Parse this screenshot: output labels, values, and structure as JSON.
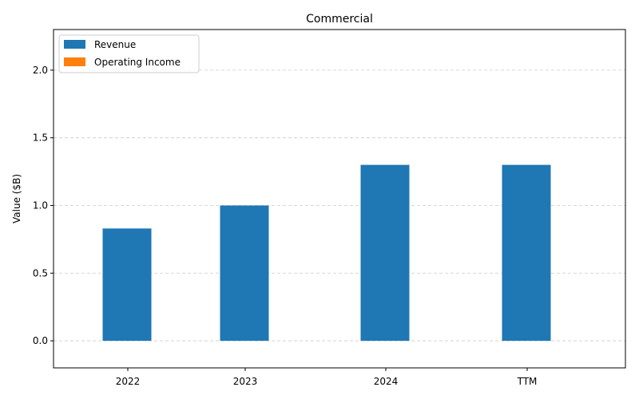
{
  "chart_data": {
    "type": "bar",
    "title": "Commercial",
    "xlabel": "",
    "ylabel": "Value ($B)",
    "categories": [
      "2022",
      "2023",
      "2024",
      "TTM"
    ],
    "series": [
      {
        "name": "Revenue",
        "values": [
          0.83,
          1.0,
          1.3,
          1.3
        ],
        "color": "#1f77b4"
      },
      {
        "name": "Operating Income",
        "values": [
          0,
          0,
          0,
          0
        ],
        "color": "#ff7f0e"
      }
    ],
    "ylim": [
      -0.2,
      2.3
    ],
    "yticks": [
      0.0,
      0.5,
      1.0,
      1.5,
      2.0
    ],
    "ytick_labels": [
      "0.0",
      "0.5",
      "1.0",
      "1.5",
      "2.0"
    ],
    "grid": "y-dashed",
    "legend": "top-left"
  }
}
